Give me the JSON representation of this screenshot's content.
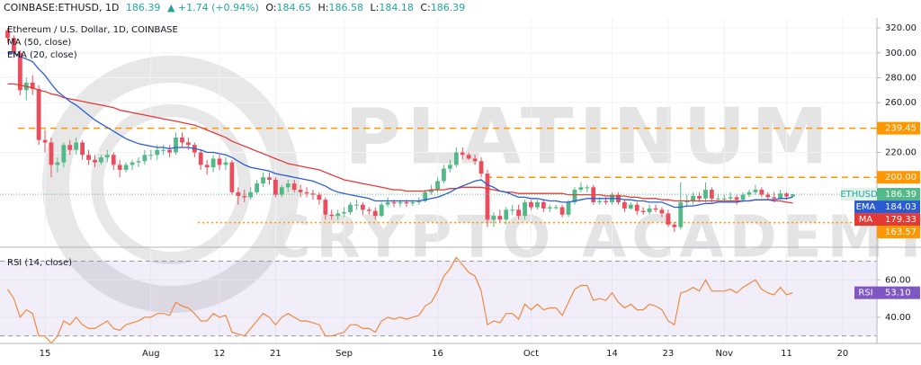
{
  "header": {
    "symbol": "COINBASE:ETHUSD, 1D",
    "price": "186.39",
    "change": "▲ +1.74 (+0.94%)",
    "ohlc": [
      {
        "key": "O:",
        "value": "184.65"
      },
      {
        "key": "H:",
        "value": "186.58"
      },
      {
        "key": "L:",
        "value": "184.18"
      },
      {
        "key": "C:",
        "value": "186.39"
      }
    ]
  },
  "watermark": [
    "PLATINUM",
    "CRYPTO ACADEMY"
  ],
  "chart_data": [
    {
      "type": "candlestick",
      "title": "Ethereum / U.S. Dollar, 1D, COINBASE",
      "symbol_tag": "ETHUSD",
      "up_color": "#53b987",
      "down_color": "#eb4d5c",
      "grid": true,
      "categories": [
        null,
        null,
        null,
        null,
        null,
        null,
        "15",
        null,
        null,
        null,
        null,
        null,
        null,
        null,
        null,
        null,
        null,
        null,
        null,
        null,
        null,
        null,
        null,
        "Aug",
        null,
        null,
        null,
        null,
        null,
        null,
        null,
        null,
        null,
        null,
        "12",
        null,
        null,
        null,
        null,
        null,
        null,
        null,
        null,
        "21",
        null,
        null,
        null,
        null,
        null,
        null,
        null,
        null,
        null,
        null,
        "Sep",
        null,
        null,
        null,
        null,
        null,
        null,
        null,
        null,
        null,
        null,
        null,
        null,
        null,
        null,
        "16",
        null,
        null,
        null,
        null,
        null,
        null,
        null,
        null,
        null,
        null,
        null,
        null,
        null,
        null,
        "Oct",
        null,
        null,
        null,
        null,
        null,
        null,
        null,
        null,
        null,
        null,
        null,
        null,
        "14",
        null,
        null,
        null,
        null,
        null,
        null,
        null,
        null,
        "23",
        null,
        null,
        null,
        null,
        null,
        null,
        null,
        null,
        "Nov",
        null,
        null,
        null,
        null,
        null,
        null,
        null,
        null,
        null,
        "11",
        null,
        null,
        null,
        null,
        null,
        null,
        null,
        null,
        "20",
        null,
        null,
        null,
        null,
        null
      ],
      "open": [
        318,
        312,
        300,
        270,
        276,
        271,
        230,
        228,
        210,
        212,
        226,
        222,
        228,
        218,
        214,
        212,
        216,
        218,
        210,
        206,
        210,
        212,
        213,
        218,
        218,
        222,
        222,
        220,
        232,
        228,
        226,
        220,
        210,
        208,
        215,
        210,
        212,
        188,
        185,
        184,
        188,
        195,
        200,
        198,
        186,
        192,
        195,
        190,
        188,
        187,
        186,
        182,
        170,
        169,
        171,
        172,
        178,
        178,
        174,
        173,
        169,
        178,
        180,
        179,
        180,
        179,
        180,
        181,
        188,
        190,
        197,
        207,
        210,
        220,
        218,
        215,
        213,
        203,
        166,
        169,
        166,
        174,
        174,
        169,
        180,
        176,
        180,
        175,
        176,
        176,
        170,
        180,
        190,
        192,
        192,
        180,
        181,
        180,
        186,
        180,
        175,
        178,
        173,
        172,
        175,
        174,
        171,
        162,
        160,
        180,
        181,
        185,
        183,
        190,
        183,
        183,
        183,
        184,
        182,
        186,
        188,
        190,
        186,
        184,
        183,
        187,
        184.65,
        null,
        null,
        null,
        null,
        null,
        null,
        null,
        null,
        null,
        null,
        null,
        null,
        null
      ],
      "high": [
        320,
        314,
        302,
        280,
        282,
        274,
        238,
        232,
        216,
        228,
        230,
        232,
        230,
        222,
        218,
        218,
        222,
        220,
        214,
        212,
        214,
        216,
        222,
        222,
        226,
        226,
        226,
        236,
        236,
        232,
        228,
        222,
        214,
        218,
        218,
        216,
        214,
        192,
        190,
        192,
        198,
        204,
        204,
        200,
        194,
        198,
        198,
        194,
        192,
        190,
        188,
        184,
        174,
        174,
        176,
        180,
        182,
        180,
        176,
        176,
        180,
        184,
        182,
        182,
        182,
        182,
        184,
        190,
        194,
        200,
        210,
        214,
        224,
        224,
        220,
        218,
        216,
        206,
        172,
        174,
        176,
        178,
        178,
        182,
        182,
        182,
        182,
        178,
        178,
        178,
        182,
        192,
        196,
        194,
        194,
        184,
        184,
        188,
        188,
        182,
        180,
        180,
        176,
        178,
        178,
        176,
        174,
        164,
        196,
        186,
        188,
        188,
        196,
        192,
        186,
        186,
        188,
        186,
        188,
        190,
        194,
        192,
        188,
        188,
        190,
        188,
        186.58,
        null,
        null,
        null,
        null,
        null,
        null,
        null,
        null,
        null,
        null,
        null,
        null,
        null
      ],
      "low": [
        308,
        296,
        266,
        262,
        266,
        226,
        220,
        200,
        204,
        208,
        218,
        218,
        214,
        210,
        208,
        210,
        212,
        206,
        200,
        204,
        206,
        208,
        210,
        214,
        214,
        218,
        216,
        218,
        224,
        222,
        216,
        206,
        202,
        204,
        206,
        206,
        186,
        178,
        180,
        182,
        186,
        192,
        194,
        184,
        184,
        188,
        188,
        184,
        184,
        182,
        178,
        166,
        166,
        166,
        168,
        170,
        174,
        170,
        170,
        166,
        168,
        176,
        176,
        176,
        176,
        177,
        178,
        180,
        186,
        188,
        195,
        204,
        208,
        214,
        214,
        210,
        200,
        160,
        160,
        164,
        162,
        170,
        166,
        166,
        174,
        174,
        172,
        172,
        174,
        168,
        168,
        178,
        188,
        188,
        178,
        178,
        178,
        178,
        178,
        172,
        174,
        170,
        170,
        170,
        172,
        168,
        160,
        156,
        158,
        176,
        178,
        180,
        180,
        180,
        180,
        180,
        180,
        178,
        180,
        184,
        186,
        184,
        182,
        180,
        182,
        182,
        184.18,
        null,
        null,
        null,
        null,
        null,
        null,
        null,
        null,
        null,
        null,
        null,
        null,
        null
      ],
      "close": [
        312,
        300,
        270,
        276,
        271,
        230,
        228,
        210,
        212,
        226,
        222,
        228,
        218,
        214,
        212,
        216,
        218,
        210,
        206,
        210,
        212,
        213,
        218,
        218,
        222,
        222,
        220,
        232,
        228,
        226,
        220,
        210,
        208,
        215,
        210,
        212,
        188,
        185,
        184,
        188,
        195,
        200,
        198,
        186,
        192,
        195,
        190,
        188,
        187,
        186,
        182,
        170,
        169,
        171,
        172,
        178,
        178,
        174,
        173,
        169,
        178,
        180,
        179,
        180,
        179,
        180,
        181,
        188,
        190,
        197,
        207,
        210,
        220,
        218,
        215,
        213,
        203,
        166,
        169,
        166,
        174,
        174,
        169,
        180,
        176,
        180,
        175,
        176,
        176,
        170,
        180,
        190,
        192,
        192,
        180,
        181,
        180,
        186,
        180,
        175,
        178,
        173,
        172,
        175,
        174,
        171,
        162,
        160,
        180,
        181,
        185,
        183,
        190,
        183,
        183,
        183,
        184,
        182,
        186,
        188,
        190,
        186,
        184,
        183,
        187,
        184.65,
        186.39,
        null,
        null,
        null,
        null,
        null,
        null,
        null,
        null,
        null,
        null,
        null,
        null,
        null
      ],
      "series": [
        {
          "name": "MA (50, close)",
          "tag": "MA",
          "color": "#e53935",
          "values": [
            275,
            275,
            274,
            273,
            272,
            270,
            269,
            267,
            266,
            264,
            263,
            262,
            261,
            260,
            259,
            258,
            257,
            256,
            254,
            253,
            252,
            251,
            250,
            249,
            248,
            247,
            246,
            245,
            244,
            243,
            242,
            240,
            238,
            236,
            234,
            232,
            229,
            227,
            225,
            223,
            221,
            219,
            217,
            215,
            213,
            211,
            210,
            209,
            208,
            207,
            206,
            204,
            202,
            200,
            198,
            197,
            196,
            195,
            194,
            193,
            192,
            191,
            190,
            190,
            189,
            189,
            189,
            189,
            190,
            190,
            190,
            191,
            191,
            192,
            192,
            192,
            192,
            191,
            190,
            189,
            188,
            188,
            187,
            187,
            187,
            187,
            187,
            187,
            187,
            187,
            186,
            186,
            186,
            186,
            186,
            186,
            185,
            185,
            185,
            185,
            184,
            184,
            183,
            183,
            183,
            182,
            182,
            181,
            181,
            181,
            181,
            181,
            181,
            181,
            181,
            181,
            181,
            181,
            181,
            181,
            182,
            182,
            182,
            181,
            181,
            180,
            179.33,
            null,
            null,
            null,
            null,
            null,
            null,
            null,
            null,
            null,
            null,
            null,
            null,
            null
          ]
        },
        {
          "name": "EMA (20, close)",
          "tag": "EMA",
          "color": "#2a5bd7",
          "values": [
            300,
            300,
            297,
            295,
            293,
            287,
            282,
            275,
            269,
            265,
            261,
            258,
            254,
            250,
            246,
            243,
            240,
            237,
            234,
            231,
            229,
            227,
            226,
            225,
            224,
            224,
            223,
            224,
            224,
            224,
            223,
            222,
            220,
            220,
            219,
            218,
            216,
            213,
            210,
            208,
            207,
            206,
            205,
            203,
            202,
            201,
            200,
            199,
            198,
            197,
            195,
            193,
            190,
            188,
            187,
            186,
            185,
            184,
            183,
            181,
            181,
            181,
            181,
            181,
            181,
            181,
            181,
            182,
            183,
            184,
            186,
            188,
            191,
            193,
            195,
            197,
            198,
            194,
            192,
            189,
            188,
            186,
            184,
            184,
            183,
            183,
            182,
            181,
            181,
            180,
            180,
            181,
            182,
            183,
            183,
            183,
            183,
            183,
            183,
            182,
            182,
            181,
            181,
            180,
            180,
            180,
            178,
            176,
            176,
            177,
            177,
            178,
            179,
            179,
            180,
            180,
            180,
            180,
            181,
            181,
            182,
            182,
            182,
            182,
            183,
            183,
            184.03,
            null,
            null,
            null,
            null,
            null,
            null,
            null,
            null,
            null,
            null,
            null,
            null,
            null
          ]
        }
      ],
      "ylim": [
        146,
        328
      ],
      "yticks": [
        {
          "value": 220,
          "label": "220.00"
        },
        {
          "value": 260,
          "label": "260.00"
        },
        {
          "value": 280,
          "label": "280.00"
        },
        {
          "value": 300,
          "label": "300.00"
        },
        {
          "value": 320,
          "label": "320.00"
        }
      ],
      "level_color": "#ff9800",
      "levels": [
        {
          "value": 239.45,
          "style": "dashed"
        },
        {
          "value": 200,
          "label": "200.00",
          "style": "dashed"
        },
        {
          "value": 163.57,
          "style": "dotted"
        }
      ]
    },
    {
      "type": "line",
      "grid": true,
      "series": [
        {
          "name": "RSI (14, close)",
          "tag": "RSI",
          "color": "#f0883e",
          "tag_color": "#7e57c2",
          "last_label": "53.10",
          "values": [
            55,
            50,
            40,
            44,
            42,
            30,
            30,
            26,
            30,
            38,
            36,
            40,
            36,
            34,
            34,
            36,
            38,
            34,
            33,
            36,
            37,
            38,
            40,
            40,
            42,
            42,
            41,
            48,
            46,
            45,
            42,
            38,
            38,
            42,
            40,
            41,
            32,
            31,
            30,
            34,
            38,
            42,
            40,
            36,
            40,
            42,
            40,
            38,
            38,
            37,
            36,
            30,
            30,
            31,
            32,
            36,
            36,
            34,
            34,
            32,
            38,
            40,
            39,
            40,
            39,
            40,
            41,
            46,
            48,
            54,
            62,
            66,
            72,
            68,
            64,
            62,
            54,
            36,
            38,
            37,
            42,
            42,
            39,
            47,
            44,
            47,
            44,
            45,
            45,
            41,
            48,
            55,
            57,
            57,
            49,
            50,
            49,
            53,
            48,
            45,
            47,
            44,
            44,
            47,
            46,
            44,
            38,
            36,
            53,
            54,
            56,
            54,
            60,
            54,
            54,
            54,
            55,
            53,
            56,
            58,
            60,
            55,
            53,
            52,
            56,
            52,
            53.1,
            null,
            null,
            null,
            null,
            null,
            null,
            null,
            null,
            null,
            null,
            null,
            null,
            null
          ]
        }
      ],
      "band": [
        30,
        70
      ],
      "band_color": "#7e57c2",
      "ylim": [
        26,
        76
      ],
      "yticks": [
        {
          "value": 40,
          "label": "40.00"
        },
        {
          "value": 60,
          "label": "60.00"
        }
      ]
    }
  ]
}
